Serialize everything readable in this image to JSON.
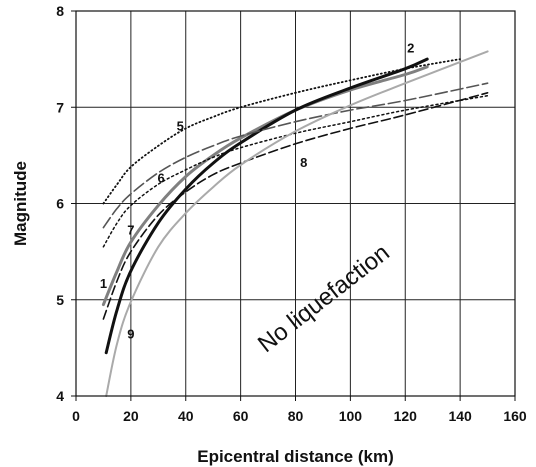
{
  "chart_data": {
    "type": "line",
    "title": "",
    "xlabel": "Epicentral distance (km)",
    "ylabel": "Magnitude",
    "xlim": [
      0,
      160
    ],
    "ylim": [
      4,
      8
    ],
    "x_ticks": [
      0,
      20,
      40,
      60,
      80,
      100,
      120,
      140,
      160
    ],
    "y_ticks": [
      4,
      5,
      6,
      7,
      8
    ],
    "grid": true,
    "legend": "none",
    "annotations": [
      {
        "text": "No liquefaction",
        "x": 92,
        "y": 4.95,
        "rotation": -38
      }
    ],
    "series": [
      {
        "name": "1",
        "color": "#808080",
        "dash": "solid",
        "width": 3.0,
        "x": [
          10,
          15,
          20,
          30,
          40,
          50,
          60,
          80,
          100,
          120,
          128
        ],
        "y": [
          4.95,
          5.3,
          5.6,
          5.98,
          6.28,
          6.5,
          6.68,
          6.97,
          7.18,
          7.34,
          7.42
        ],
        "label_at": [
          10,
          5.12
        ]
      },
      {
        "name": "2",
        "color": "#111111",
        "dash": "solid",
        "width": 3.0,
        "x": [
          11,
          15,
          20,
          30,
          40,
          50,
          60,
          80,
          100,
          120,
          128
        ],
        "y": [
          4.45,
          4.9,
          5.3,
          5.8,
          6.15,
          6.42,
          6.63,
          6.97,
          7.2,
          7.4,
          7.5
        ],
        "label_at": [
          122,
          7.57
        ]
      },
      {
        "name": "5",
        "color": "#111111",
        "dash": "1,3",
        "width": 1.8,
        "x": [
          10,
          15,
          20,
          30,
          40,
          50,
          60,
          80,
          100,
          120,
          140
        ],
        "y": [
          6.0,
          6.2,
          6.38,
          6.6,
          6.78,
          6.9,
          7.0,
          7.15,
          7.28,
          7.4,
          7.5
        ],
        "label_at": [
          38,
          6.76
        ]
      },
      {
        "name": "6",
        "color": "#555555",
        "dash": "12,4",
        "width": 1.6,
        "x": [
          10,
          15,
          20,
          30,
          40,
          50,
          60,
          80,
          100,
          120,
          150
        ],
        "y": [
          5.75,
          5.95,
          6.1,
          6.32,
          6.48,
          6.6,
          6.7,
          6.85,
          6.97,
          7.07,
          7.25
        ],
        "label_at": [
          31,
          6.22
        ]
      },
      {
        "name": "7",
        "color": "#111111",
        "dash": "2,3",
        "width": 1.5,
        "x": [
          10,
          15,
          20,
          30,
          40,
          50,
          60,
          80,
          100,
          120,
          150
        ],
        "y": [
          5.55,
          5.8,
          5.98,
          6.2,
          6.35,
          6.48,
          6.58,
          6.73,
          6.85,
          6.97,
          7.12
        ],
        "label_at": [
          20,
          5.68
        ]
      },
      {
        "name": "8",
        "color": "#111111",
        "dash": "9,4",
        "width": 1.6,
        "x": [
          10,
          15,
          20,
          30,
          40,
          50,
          60,
          80,
          100,
          120,
          150
        ],
        "y": [
          4.8,
          5.2,
          5.5,
          5.88,
          6.12,
          6.3,
          6.42,
          6.62,
          6.78,
          6.92,
          7.15
        ],
        "label_at": [
          83,
          6.38
        ]
      },
      {
        "name": "9",
        "color": "#aaaaaa",
        "dash": "solid",
        "width": 2.0,
        "x": [
          11,
          15,
          20,
          30,
          40,
          50,
          60,
          80,
          100,
          120,
          150
        ],
        "y": [
          4.0,
          4.55,
          4.98,
          5.55,
          5.9,
          6.17,
          6.4,
          6.75,
          7.02,
          7.25,
          7.58
        ],
        "label_at": [
          20,
          4.6
        ]
      }
    ]
  }
}
